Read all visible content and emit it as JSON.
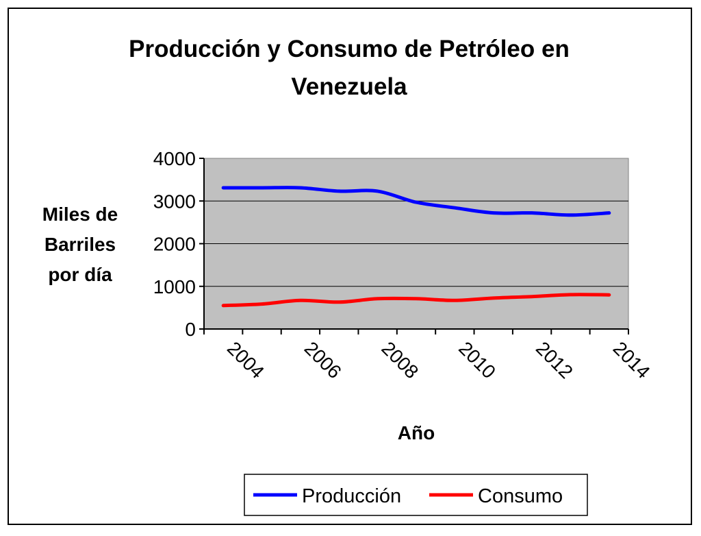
{
  "chart_data": {
    "type": "line",
    "title": "Producción y Consumo de Petróleo en Venezuela",
    "title_lines": [
      "Producción y Consumo de Petróleo en",
      "Venezuela"
    ],
    "xlabel": "Año",
    "ylabel_lines": [
      "Miles de",
      "Barriles",
      "por día"
    ],
    "ylabel": "Miles de Barriles por día",
    "ylim": [
      0,
      4000
    ],
    "yticks": [
      "0",
      "1000",
      "2000",
      "3000",
      "4000"
    ],
    "categories": [
      "2004",
      "2005",
      "2006",
      "2007",
      "2008",
      "2009",
      "2010",
      "2011",
      "2012",
      "2013",
      "2014"
    ],
    "xtick_labels": [
      "2004",
      "2006",
      "2008",
      "2010",
      "2012",
      "2014"
    ],
    "grid": true,
    "legend_position": "bottom",
    "series": [
      {
        "name": "Producción",
        "color": "#0000ff",
        "values": [
          3310,
          3310,
          3310,
          3230,
          3230,
          2970,
          2840,
          2720,
          2720,
          2670,
          2720
        ]
      },
      {
        "name": "Consumo",
        "color": "#ff0000",
        "values": [
          550,
          585,
          670,
          630,
          710,
          710,
          670,
          725,
          760,
          805,
          800
        ]
      }
    ]
  }
}
